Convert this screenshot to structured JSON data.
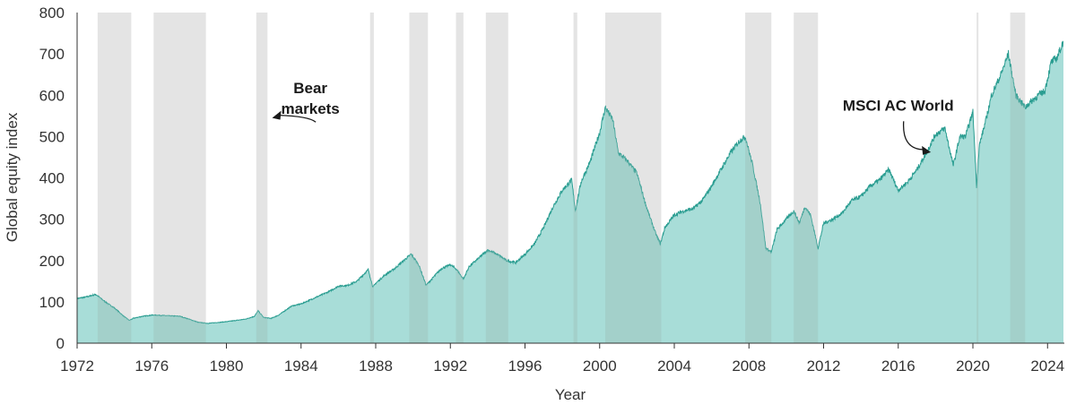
{
  "chart_data": {
    "type": "area",
    "xlabel": "Year",
    "ylabel": "Global equity index",
    "xlim": [
      1972,
      2024.9
    ],
    "ylim": [
      0,
      800
    ],
    "x_ticks": [
      1972,
      1976,
      1980,
      1984,
      1988,
      1992,
      1996,
      2000,
      2004,
      2008,
      2012,
      2016,
      2020,
      2024
    ],
    "y_ticks": [
      0,
      100,
      200,
      300,
      400,
      500,
      600,
      700,
      800
    ],
    "grid": false,
    "colors": {
      "area": "#a8ddd8",
      "line": "#2a9d91",
      "band": "#e4e4e4",
      "band_overlap": "#9fc4c0"
    },
    "bear_markets": [
      [
        1973.1,
        1974.9
      ],
      [
        1976.1,
        1978.9
      ],
      [
        1981.6,
        1982.2
      ],
      [
        1987.7,
        1987.9
      ],
      [
        1989.8,
        1990.8
      ],
      [
        1992.3,
        1992.7
      ],
      [
        1993.9,
        1995.1
      ],
      [
        1998.6,
        1998.8
      ],
      [
        2000.3,
        2003.3
      ],
      [
        2007.8,
        2009.2
      ],
      [
        2010.4,
        2011.7
      ],
      [
        2020.2,
        2020.25
      ],
      [
        2022.0,
        2022.8
      ]
    ],
    "series": [
      {
        "name": "MSCI AC World",
        "x": [
          1972.0,
          1972.5,
          1973.0,
          1973.5,
          1974.0,
          1974.5,
          1974.8,
          1975.0,
          1975.5,
          1976.0,
          1976.5,
          1977.0,
          1977.5,
          1978.0,
          1978.5,
          1979.0,
          1979.5,
          1980.0,
          1980.5,
          1981.0,
          1981.5,
          1981.7,
          1982.0,
          1982.4,
          1982.8,
          1983.5,
          1984.0,
          1984.5,
          1985.0,
          1985.5,
          1986.0,
          1986.5,
          1987.0,
          1987.6,
          1987.85,
          1988.0,
          1988.5,
          1989.0,
          1989.5,
          1989.9,
          1990.3,
          1990.7,
          1991.0,
          1991.5,
          1992.0,
          1992.3,
          1992.7,
          1993.0,
          1993.5,
          1994.0,
          1994.5,
          1995.0,
          1995.5,
          1996.0,
          1996.5,
          1997.0,
          1997.5,
          1998.0,
          1998.5,
          1998.7,
          1999.0,
          1999.5,
          2000.0,
          2000.3,
          2000.7,
          2001.0,
          2001.5,
          2002.0,
          2002.5,
          2003.0,
          2003.25,
          2003.5,
          2004.0,
          2004.5,
          2005.0,
          2005.5,
          2006.0,
          2006.5,
          2007.0,
          2007.5,
          2007.8,
          2008.2,
          2008.6,
          2008.9,
          2009.2,
          2009.5,
          2010.0,
          2010.4,
          2010.7,
          2011.0,
          2011.3,
          2011.7,
          2012.0,
          2012.5,
          2013.0,
          2013.5,
          2014.0,
          2014.5,
          2015.0,
          2015.5,
          2016.0,
          2016.5,
          2017.0,
          2017.5,
          2018.0,
          2018.5,
          2018.95,
          2019.3,
          2019.6,
          2020.0,
          2020.2,
          2020.35,
          2020.7,
          2021.0,
          2021.5,
          2021.9,
          2022.3,
          2022.8,
          2023.0,
          2023.5,
          2023.85,
          2024.2,
          2024.5,
          2024.85
        ],
        "values": [
          108,
          112,
          118,
          100,
          85,
          65,
          55,
          60,
          65,
          68,
          67,
          66,
          65,
          58,
          50,
          48,
          50,
          52,
          55,
          58,
          65,
          78,
          62,
          60,
          68,
          90,
          95,
          105,
          115,
          125,
          138,
          140,
          150,
          178,
          135,
          145,
          165,
          180,
          200,
          215,
          190,
          140,
          155,
          180,
          190,
          180,
          155,
          185,
          205,
          225,
          215,
          200,
          195,
          215,
          240,
          280,
          330,
          370,
          395,
          320,
          390,
          440,
          510,
          570,
          540,
          460,
          440,
          410,
          330,
          265,
          240,
          280,
          310,
          320,
          325,
          345,
          380,
          420,
          460,
          490,
          500,
          430,
          340,
          230,
          220,
          275,
          300,
          320,
          290,
          330,
          310,
          230,
          290,
          300,
          315,
          345,
          355,
          380,
          395,
          420,
          370,
          390,
          420,
          460,
          505,
          520,
          430,
          500,
          500,
          560,
          380,
          480,
          540,
          600,
          650,
          700,
          600,
          570,
          580,
          600,
          610,
          680,
          690,
          730
        ]
      }
    ],
    "annotations": [
      {
        "text": "Bear",
        "text2": "markets",
        "x": 1984.5,
        "y": 590,
        "arrow_to": [
          1982.5,
          545
        ]
      },
      {
        "text": "MSCI AC World",
        "x": 2016.0,
        "y": 563,
        "arrow_to": [
          2017.7,
          462
        ]
      }
    ]
  }
}
